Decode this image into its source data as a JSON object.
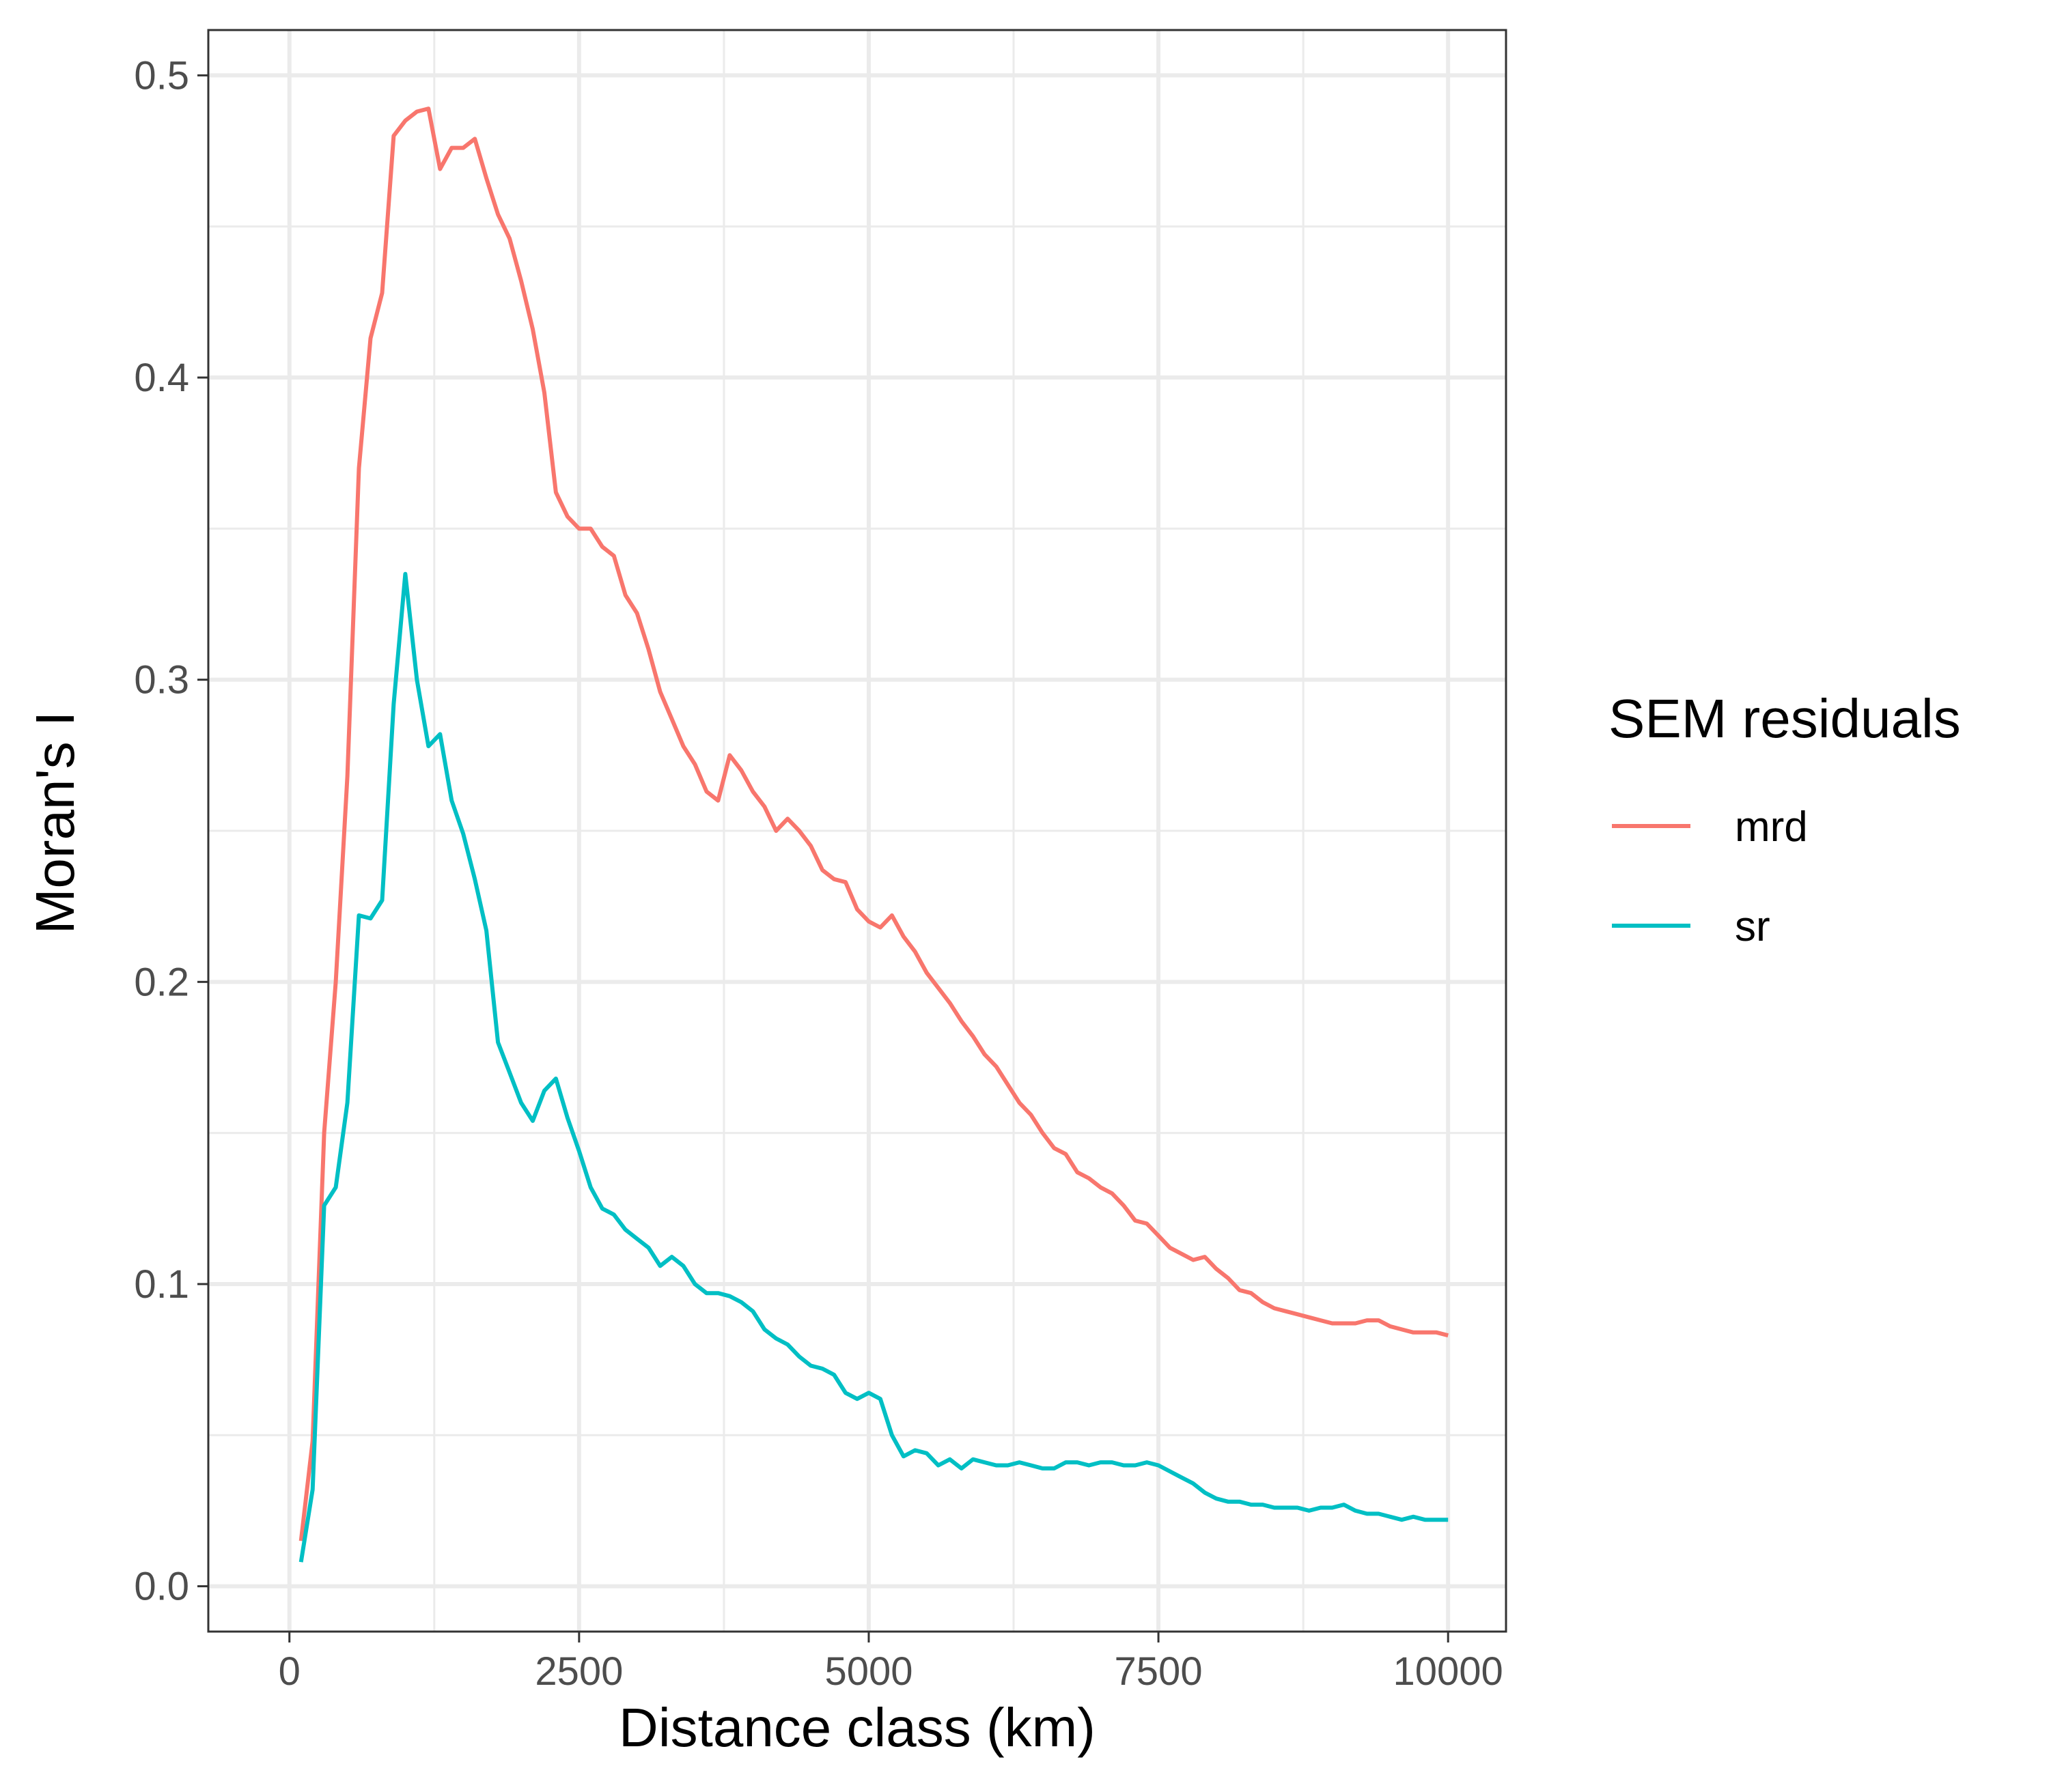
{
  "chart_data": {
    "type": "line",
    "title": "",
    "xlabel": "Distance class (km)",
    "ylabel": "Moran's I",
    "xlim": [
      -700,
      10500
    ],
    "ylim": [
      -0.015,
      0.515
    ],
    "x_ticks": [
      0,
      2500,
      5000,
      7500,
      10000
    ],
    "x_tick_labels": [
      "0",
      "2500",
      "5000",
      "7500",
      "10000"
    ],
    "y_ticks": [
      0.0,
      0.1,
      0.2,
      0.3,
      0.4,
      0.5
    ],
    "y_tick_labels": [
      "0.0",
      "0.1",
      "0.2",
      "0.3",
      "0.4",
      "0.5"
    ],
    "grid": true,
    "legend": {
      "title": "SEM residuals",
      "position": "right"
    },
    "series": [
      {
        "name": "mrd",
        "color": "#F8766D",
        "points": [
          [
            100,
            0.015
          ],
          [
            200,
            0.048
          ],
          [
            300,
            0.15
          ],
          [
            400,
            0.2
          ],
          [
            500,
            0.268
          ],
          [
            600,
            0.37
          ],
          [
            700,
            0.413
          ],
          [
            800,
            0.428
          ],
          [
            900,
            0.48
          ],
          [
            1000,
            0.485
          ],
          [
            1100,
            0.488
          ],
          [
            1200,
            0.489
          ],
          [
            1300,
            0.469
          ],
          [
            1400,
            0.476
          ],
          [
            1500,
            0.476
          ],
          [
            1600,
            0.479
          ],
          [
            1700,
            0.466
          ],
          [
            1800,
            0.454
          ],
          [
            1900,
            0.446
          ],
          [
            2000,
            0.432
          ],
          [
            2100,
            0.416
          ],
          [
            2200,
            0.395
          ],
          [
            2300,
            0.362
          ],
          [
            2400,
            0.354
          ],
          [
            2500,
            0.35
          ],
          [
            2600,
            0.35
          ],
          [
            2700,
            0.344
          ],
          [
            2800,
            0.341
          ],
          [
            2900,
            0.328
          ],
          [
            3000,
            0.322
          ],
          [
            3100,
            0.31
          ],
          [
            3200,
            0.296
          ],
          [
            3300,
            0.287
          ],
          [
            3400,
            0.278
          ],
          [
            3500,
            0.272
          ],
          [
            3600,
            0.263
          ],
          [
            3700,
            0.26
          ],
          [
            3800,
            0.275
          ],
          [
            3900,
            0.27
          ],
          [
            4000,
            0.263
          ],
          [
            4100,
            0.258
          ],
          [
            4200,
            0.25
          ],
          [
            4300,
            0.254
          ],
          [
            4400,
            0.25
          ],
          [
            4500,
            0.245
          ],
          [
            4600,
            0.237
          ],
          [
            4700,
            0.234
          ],
          [
            4800,
            0.233
          ],
          [
            4900,
            0.224
          ],
          [
            5000,
            0.22
          ],
          [
            5100,
            0.218
          ],
          [
            5200,
            0.222
          ],
          [
            5300,
            0.215
          ],
          [
            5400,
            0.21
          ],
          [
            5500,
            0.203
          ],
          [
            5600,
            0.198
          ],
          [
            5700,
            0.193
          ],
          [
            5800,
            0.187
          ],
          [
            5900,
            0.182
          ],
          [
            6000,
            0.176
          ],
          [
            6100,
            0.172
          ],
          [
            6200,
            0.166
          ],
          [
            6300,
            0.16
          ],
          [
            6400,
            0.156
          ],
          [
            6500,
            0.15
          ],
          [
            6600,
            0.145
          ],
          [
            6700,
            0.143
          ],
          [
            6800,
            0.137
          ],
          [
            6900,
            0.135
          ],
          [
            7000,
            0.132
          ],
          [
            7100,
            0.13
          ],
          [
            7200,
            0.126
          ],
          [
            7300,
            0.121
          ],
          [
            7400,
            0.12
          ],
          [
            7500,
            0.116
          ],
          [
            7600,
            0.112
          ],
          [
            7700,
            0.11
          ],
          [
            7800,
            0.108
          ],
          [
            7900,
            0.109
          ],
          [
            8000,
            0.105
          ],
          [
            8100,
            0.102
          ],
          [
            8200,
            0.098
          ],
          [
            8300,
            0.097
          ],
          [
            8400,
            0.094
          ],
          [
            8500,
            0.092
          ],
          [
            8600,
            0.091
          ],
          [
            8700,
            0.09
          ],
          [
            8800,
            0.089
          ],
          [
            8900,
            0.088
          ],
          [
            9000,
            0.087
          ],
          [
            9100,
            0.087
          ],
          [
            9200,
            0.087
          ],
          [
            9300,
            0.088
          ],
          [
            9400,
            0.088
          ],
          [
            9500,
            0.086
          ],
          [
            9600,
            0.085
          ],
          [
            9700,
            0.084
          ],
          [
            9800,
            0.084
          ],
          [
            9900,
            0.084
          ],
          [
            10000,
            0.083
          ]
        ]
      },
      {
        "name": "sr",
        "color": "#00BFC4",
        "points": [
          [
            100,
            0.008
          ],
          [
            200,
            0.032
          ],
          [
            300,
            0.126
          ],
          [
            400,
            0.132
          ],
          [
            500,
            0.16
          ],
          [
            600,
            0.222
          ],
          [
            700,
            0.221
          ],
          [
            800,
            0.227
          ],
          [
            900,
            0.292
          ],
          [
            1000,
            0.335
          ],
          [
            1100,
            0.3
          ],
          [
            1200,
            0.278
          ],
          [
            1300,
            0.282
          ],
          [
            1400,
            0.26
          ],
          [
            1500,
            0.249
          ],
          [
            1600,
            0.234
          ],
          [
            1700,
            0.217
          ],
          [
            1800,
            0.18
          ],
          [
            1900,
            0.17
          ],
          [
            2000,
            0.16
          ],
          [
            2100,
            0.154
          ],
          [
            2200,
            0.164
          ],
          [
            2300,
            0.168
          ],
          [
            2400,
            0.155
          ],
          [
            2500,
            0.144
          ],
          [
            2600,
            0.132
          ],
          [
            2700,
            0.125
          ],
          [
            2800,
            0.123
          ],
          [
            2900,
            0.118
          ],
          [
            3000,
            0.115
          ],
          [
            3100,
            0.112
          ],
          [
            3200,
            0.106
          ],
          [
            3300,
            0.109
          ],
          [
            3400,
            0.106
          ],
          [
            3500,
            0.1
          ],
          [
            3600,
            0.097
          ],
          [
            3700,
            0.097
          ],
          [
            3800,
            0.096
          ],
          [
            3900,
            0.094
          ],
          [
            4000,
            0.091
          ],
          [
            4100,
            0.085
          ],
          [
            4200,
            0.082
          ],
          [
            4300,
            0.08
          ],
          [
            4400,
            0.076
          ],
          [
            4500,
            0.073
          ],
          [
            4600,
            0.072
          ],
          [
            4700,
            0.07
          ],
          [
            4800,
            0.064
          ],
          [
            4900,
            0.062
          ],
          [
            5000,
            0.064
          ],
          [
            5100,
            0.062
          ],
          [
            5200,
            0.05
          ],
          [
            5300,
            0.043
          ],
          [
            5400,
            0.045
          ],
          [
            5500,
            0.044
          ],
          [
            5600,
            0.04
          ],
          [
            5700,
            0.042
          ],
          [
            5800,
            0.039
          ],
          [
            5900,
            0.042
          ],
          [
            6000,
            0.041
          ],
          [
            6100,
            0.04
          ],
          [
            6200,
            0.04
          ],
          [
            6300,
            0.041
          ],
          [
            6400,
            0.04
          ],
          [
            6500,
            0.039
          ],
          [
            6600,
            0.039
          ],
          [
            6700,
            0.041
          ],
          [
            6800,
            0.041
          ],
          [
            6900,
            0.04
          ],
          [
            7000,
            0.041
          ],
          [
            7100,
            0.041
          ],
          [
            7200,
            0.04
          ],
          [
            7300,
            0.04
          ],
          [
            7400,
            0.041
          ],
          [
            7500,
            0.04
          ],
          [
            7600,
            0.038
          ],
          [
            7700,
            0.036
          ],
          [
            7800,
            0.034
          ],
          [
            7900,
            0.031
          ],
          [
            8000,
            0.029
          ],
          [
            8100,
            0.028
          ],
          [
            8200,
            0.028
          ],
          [
            8300,
            0.027
          ],
          [
            8400,
            0.027
          ],
          [
            8500,
            0.026
          ],
          [
            8600,
            0.026
          ],
          [
            8700,
            0.026
          ],
          [
            8800,
            0.025
          ],
          [
            8900,
            0.026
          ],
          [
            9000,
            0.026
          ],
          [
            9100,
            0.027
          ],
          [
            9200,
            0.025
          ],
          [
            9300,
            0.024
          ],
          [
            9400,
            0.024
          ],
          [
            9500,
            0.023
          ],
          [
            9600,
            0.022
          ],
          [
            9700,
            0.023
          ],
          [
            9800,
            0.022
          ],
          [
            9900,
            0.022
          ],
          [
            10000,
            0.022
          ]
        ]
      }
    ]
  }
}
